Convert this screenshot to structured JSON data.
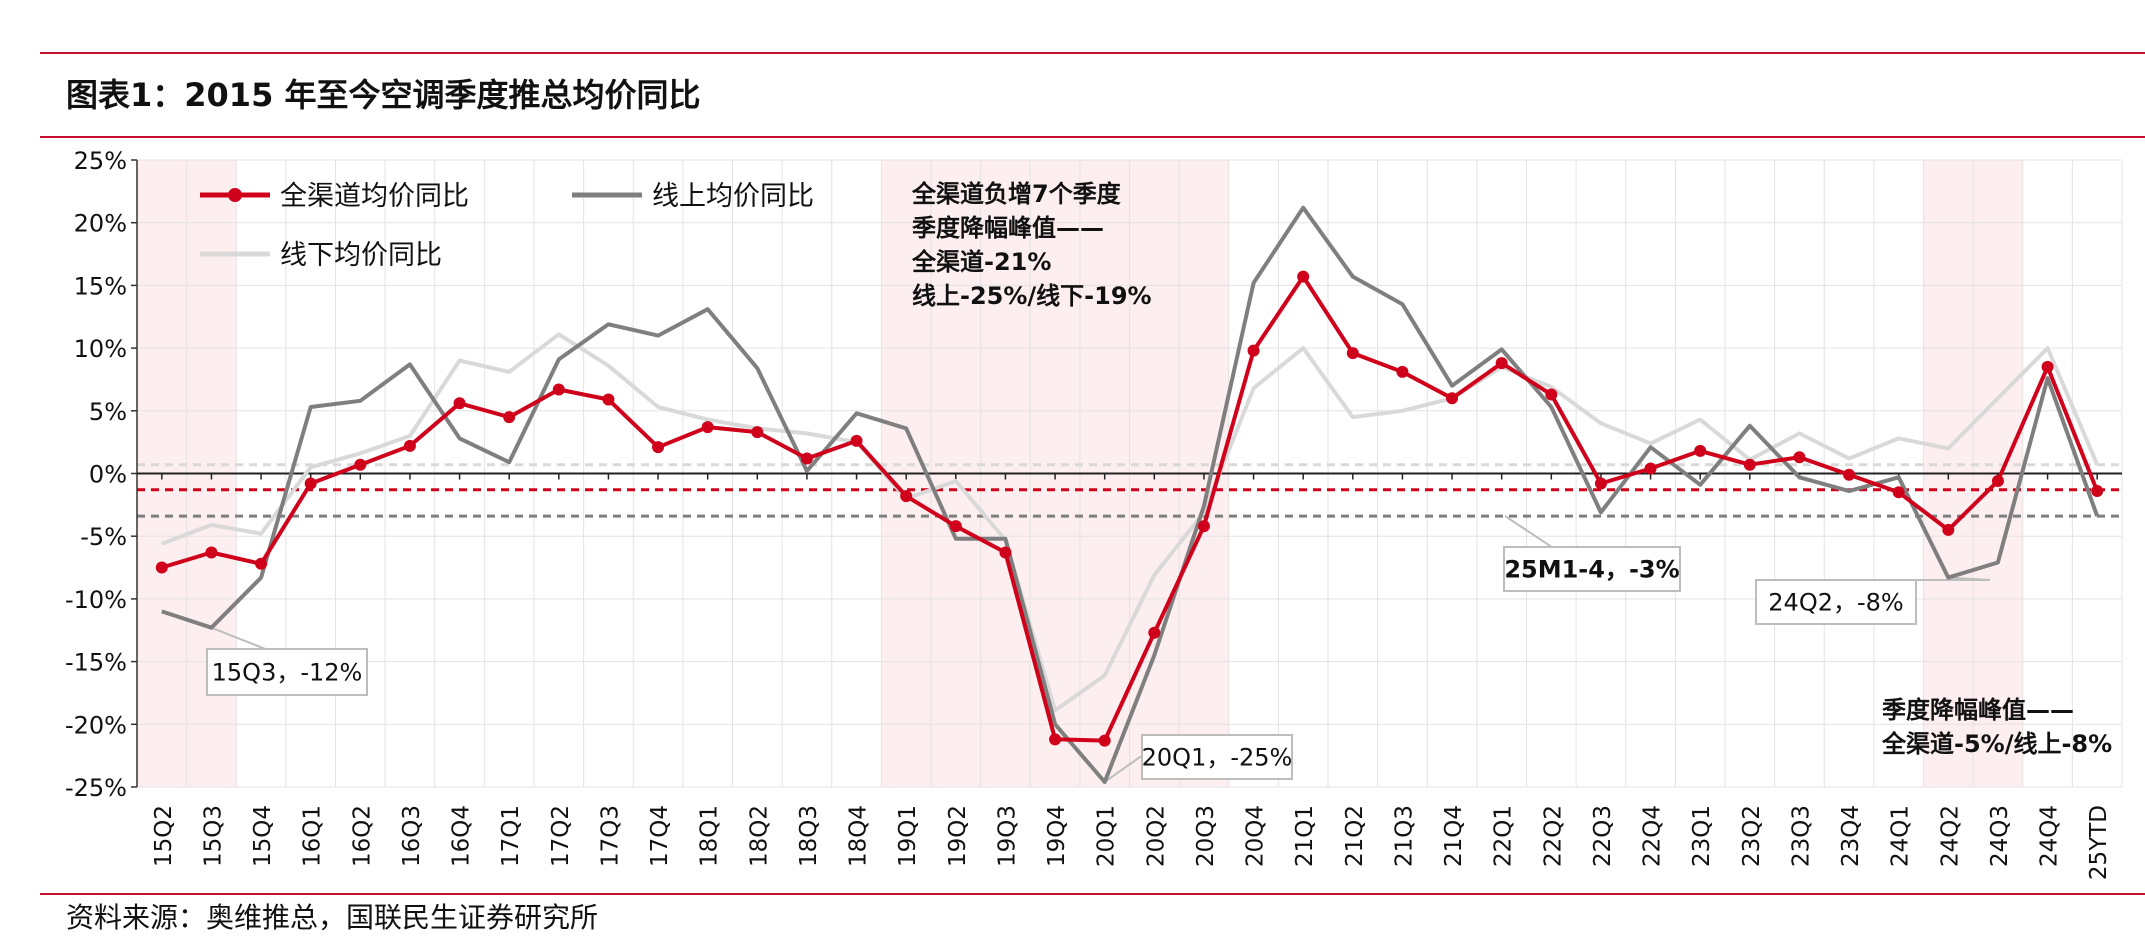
{
  "header": {
    "title": "图表1：2015 年至今空调季度推总均价同比"
  },
  "footer": {
    "source": "资料来源：奥维推总，国联民生证券研究所"
  },
  "colors": {
    "all": "#d0021b",
    "online": "#7f7f7f",
    "offline": "#d9d9d9",
    "shade": "#fdeef0",
    "brand": "#c8102e"
  },
  "chart_data": {
    "type": "line",
    "categories": [
      "15Q2",
      "15Q3",
      "15Q4",
      "16Q1",
      "16Q2",
      "16Q3",
      "16Q4",
      "17Q1",
      "17Q2",
      "17Q3",
      "17Q4",
      "18Q1",
      "18Q2",
      "18Q3",
      "18Q4",
      "19Q1",
      "19Q2",
      "19Q3",
      "19Q4",
      "20Q1",
      "20Q2",
      "20Q3",
      "20Q4",
      "21Q1",
      "21Q2",
      "21Q3",
      "21Q4",
      "22Q1",
      "22Q2",
      "22Q3",
      "22Q4",
      "23Q1",
      "23Q2",
      "23Q3",
      "23Q4",
      "24Q1",
      "24Q2",
      "24Q3",
      "24Q4",
      "25YTD"
    ],
    "ylim": [
      -25,
      25
    ],
    "yticks": [
      -25,
      -20,
      -15,
      -10,
      -5,
      0,
      5,
      10,
      15,
      20,
      25
    ],
    "ytick_labels": [
      "-25%",
      "-20%",
      "-15%",
      "-10%",
      "-5%",
      "0%",
      "5%",
      "10%",
      "15%",
      "20%",
      "25%"
    ],
    "grid": true,
    "legend_position": "top-left",
    "series": [
      {
        "name": "全渠道均价同比",
        "markers": true,
        "values": [
          -7.5,
          -6.3,
          -7.2,
          -0.8,
          0.7,
          2.2,
          5.6,
          4.5,
          6.7,
          5.9,
          2.1,
          3.7,
          3.3,
          1.2,
          2.6,
          -1.8,
          -4.2,
          -6.3,
          -21.2,
          -21.3,
          -12.7,
          -4.2,
          9.8,
          15.7,
          9.6,
          8.1,
          6.0,
          8.8,
          6.3,
          -0.8,
          0.4,
          1.8,
          0.7,
          1.3,
          -0.1,
          -1.5,
          -4.5,
          -0.6,
          8.5,
          -1.4
        ]
      },
      {
        "name": "线上均价同比",
        "markers": false,
        "values": [
          -11.0,
          -12.3,
          -8.3,
          5.3,
          5.8,
          8.7,
          2.8,
          0.9,
          9.1,
          11.9,
          11.0,
          13.1,
          8.4,
          0.2,
          4.8,
          3.6,
          -5.2,
          -5.2,
          -20.0,
          -24.6,
          -14.5,
          -2.6,
          15.2,
          21.2,
          15.7,
          13.5,
          7.0,
          9.9,
          5.3,
          -3.1,
          2.1,
          -0.9,
          3.8,
          -0.3,
          -1.4,
          -0.3,
          -8.3,
          -7.1,
          7.6,
          -3.4
        ]
      },
      {
        "name": "线下均价同比",
        "markers": false,
        "values": [
          -5.6,
          -4.1,
          -4.8,
          0.5,
          1.6,
          3.0,
          9.0,
          8.1,
          11.1,
          8.6,
          5.3,
          4.3,
          3.6,
          3.2,
          2.5,
          -2.0,
          -0.6,
          -5.3,
          -18.9,
          -16.1,
          -8.1,
          -3.1,
          6.8,
          10.0,
          4.5,
          5.0,
          6.0,
          8.5,
          6.9,
          4.0,
          2.4,
          4.3,
          1.1,
          3.2,
          1.2,
          2.8,
          2.0,
          6.0,
          10.0,
          0.7
        ]
      }
    ],
    "reference_lines": [
      {
        "value": 0.7,
        "color": "#d9d9d9"
      },
      {
        "value": -1.3,
        "color": "#d0021b"
      },
      {
        "value": -3.4,
        "color": "#7f7f7f"
      }
    ],
    "shaded_ranges": [
      {
        "from": "15Q2",
        "to": "15Q3"
      },
      {
        "from": "19Q1",
        "to": "20Q3"
      },
      {
        "from": "24Q2",
        "to": "24Q3"
      }
    ],
    "annotations": [
      {
        "id": "a1",
        "text": "15Q3，-12%",
        "boxed": true
      },
      {
        "id": "a2",
        "text": "20Q1，-25%",
        "boxed": true
      },
      {
        "id": "a3",
        "text": "25M1-4，-3%",
        "boxed": true,
        "bold": true
      },
      {
        "id": "a4",
        "text": "24Q2，-8%",
        "boxed": true
      },
      {
        "id": "n1",
        "lines": [
          "全渠道负增7个季度",
          "季度降幅峰值——",
          "全渠道-21%",
          "线上-25%/线下-19%"
        ]
      },
      {
        "id": "n2",
        "lines": [
          "季度降幅峰值——",
          "全渠道-5%/线上-8%"
        ]
      }
    ]
  }
}
